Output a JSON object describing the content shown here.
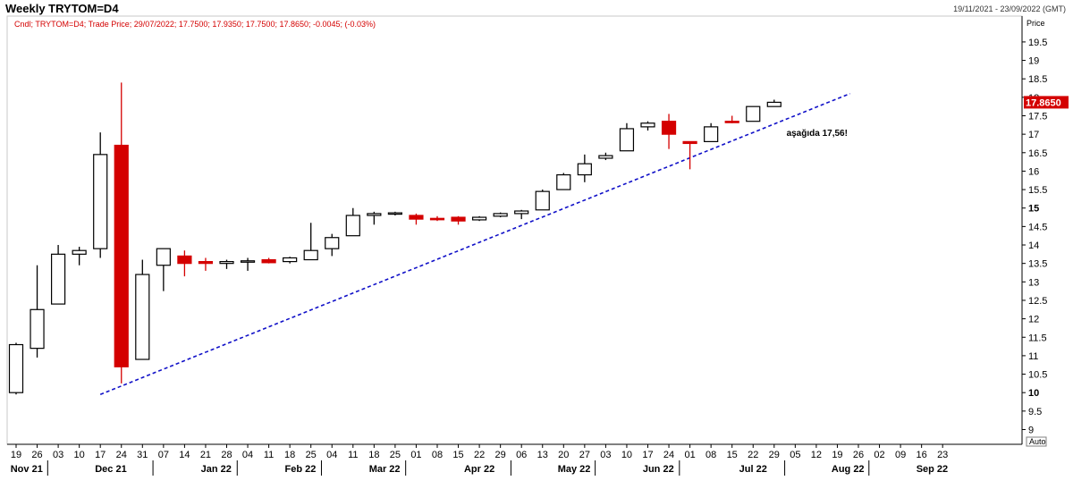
{
  "header": {
    "title": "Weekly TRYTOM=D4",
    "date_range": "19/11/2021 - 23/09/2022 (GMT)",
    "legend": "Cndl; TRYTOM=D4; Trade Price; 29/07/2022; 17.7500; 17.9350; 17.7500; 17.8650; -0.0045; (-0.03%)"
  },
  "colors": {
    "up_fill": "#ffffff",
    "down_fill": "#d40000",
    "outline": "#000000",
    "trendline": "#1010c8",
    "last_price_bg": "#d40000"
  },
  "chart_data": {
    "type": "candlestick",
    "title": "Weekly TRYTOM=D4",
    "ylabel": "Price",
    "ylim": [
      8.6,
      20.2
    ],
    "y_ticks": [
      9,
      9.5,
      10,
      10.5,
      11,
      11.5,
      12,
      12.5,
      13,
      13.5,
      14,
      14.5,
      15,
      15.5,
      16,
      16.5,
      17,
      17.5,
      18,
      18.5,
      19,
      19.5
    ],
    "y_ticks_bold": [
      10,
      15
    ],
    "y_auto_label": "Auto",
    "last_price": 17.865,
    "last_price_label": "17.8650",
    "x_ticks": [
      "19",
      "26",
      "03",
      "10",
      "17",
      "24",
      "31",
      "07",
      "14",
      "21",
      "28",
      "04",
      "11",
      "18",
      "25",
      "04",
      "11",
      "18",
      "25",
      "01",
      "08",
      "15",
      "22",
      "29",
      "06",
      "13",
      "20",
      "27",
      "03",
      "10",
      "17",
      "24",
      "01",
      "08",
      "15",
      "22",
      "29",
      "05",
      "12",
      "19",
      "26",
      "02",
      "09",
      "16",
      "23"
    ],
    "months": [
      {
        "label": "Nov 21",
        "index": 0.5
      },
      {
        "label": "Dec 21",
        "index": 4.5
      },
      {
        "label": "Jan 22",
        "index": 9.5
      },
      {
        "label": "Feb 22",
        "index": 13.5
      },
      {
        "label": "Mar 22",
        "index": 17.5
      },
      {
        "label": "Apr 22",
        "index": 22
      },
      {
        "label": "May 22",
        "index": 26.5
      },
      {
        "label": "Jun 22",
        "index": 30.5
      },
      {
        "label": "Jul 22",
        "index": 35
      },
      {
        "label": "Aug 22",
        "index": 39.5
      },
      {
        "label": "Sep 22",
        "index": 43.5
      }
    ],
    "month_separators": [
      1.5,
      6.5,
      10.5,
      14.5,
      18.5,
      23.5,
      27.5,
      31.5,
      36.5,
      40.5
    ],
    "candles": [
      {
        "date": "19/11/2021",
        "open": 10.0,
        "high": 11.35,
        "low": 9.95,
        "close": 11.3
      },
      {
        "date": "26/11/2021",
        "open": 11.2,
        "high": 13.45,
        "low": 10.95,
        "close": 12.25
      },
      {
        "date": "03/12/2021",
        "open": 12.4,
        "high": 14.0,
        "low": 12.4,
        "close": 13.75
      },
      {
        "date": "10/12/2021",
        "open": 13.75,
        "high": 13.95,
        "low": 13.45,
        "close": 13.85
      },
      {
        "date": "17/12/2021",
        "open": 13.9,
        "high": 17.05,
        "low": 13.65,
        "close": 16.45
      },
      {
        "date": "24/12/2021",
        "open": 16.7,
        "high": 18.4,
        "low": 10.25,
        "close": 10.7
      },
      {
        "date": "31/12/2021",
        "open": 10.9,
        "high": 13.6,
        "low": 10.9,
        "close": 13.2
      },
      {
        "date": "07/01/2022",
        "open": 13.45,
        "high": 13.9,
        "low": 12.75,
        "close": 13.9
      },
      {
        "date": "14/01/2022",
        "open": 13.7,
        "high": 13.85,
        "low": 13.15,
        "close": 13.5
      },
      {
        "date": "21/01/2022",
        "open": 13.55,
        "high": 13.65,
        "low": 13.3,
        "close": 13.5
      },
      {
        "date": "28/01/2022",
        "open": 13.5,
        "high": 13.6,
        "low": 13.35,
        "close": 13.55
      },
      {
        "date": "04/02/2022",
        "open": 13.55,
        "high": 13.65,
        "low": 13.3,
        "close": 13.57
      },
      {
        "date": "11/02/2022",
        "open": 13.6,
        "high": 13.65,
        "low": 13.5,
        "close": 13.52
      },
      {
        "date": "18/02/2022",
        "open": 13.55,
        "high": 13.68,
        "low": 13.5,
        "close": 13.65
      },
      {
        "date": "25/02/2022",
        "open": 13.6,
        "high": 14.6,
        "low": 13.6,
        "close": 13.85
      },
      {
        "date": "04/03/2022",
        "open": 13.9,
        "high": 14.3,
        "low": 13.7,
        "close": 14.2
      },
      {
        "date": "11/03/2022",
        "open": 14.25,
        "high": 15.0,
        "low": 14.25,
        "close": 14.8
      },
      {
        "date": "18/03/2022",
        "open": 14.8,
        "high": 14.9,
        "low": 14.55,
        "close": 14.85
      },
      {
        "date": "25/03/2022",
        "open": 14.85,
        "high": 14.9,
        "low": 14.8,
        "close": 14.87
      },
      {
        "date": "01/04/2022",
        "open": 14.8,
        "high": 14.85,
        "low": 14.55,
        "close": 14.7
      },
      {
        "date": "08/04/2022",
        "open": 14.72,
        "high": 14.78,
        "low": 14.65,
        "close": 14.7
      },
      {
        "date": "15/04/2022",
        "open": 14.75,
        "high": 14.78,
        "low": 14.55,
        "close": 14.65
      },
      {
        "date": "22/04/2022",
        "open": 14.68,
        "high": 14.78,
        "low": 14.65,
        "close": 14.75
      },
      {
        "date": "29/04/2022",
        "open": 14.78,
        "high": 14.88,
        "low": 14.75,
        "close": 14.85
      },
      {
        "date": "06/05/2022",
        "open": 14.85,
        "high": 14.95,
        "low": 14.7,
        "close": 14.92
      },
      {
        "date": "13/05/2022",
        "open": 14.95,
        "high": 15.5,
        "low": 14.95,
        "close": 15.45
      },
      {
        "date": "20/05/2022",
        "open": 15.5,
        "high": 15.95,
        "low": 15.5,
        "close": 15.9
      },
      {
        "date": "27/05/2022",
        "open": 15.9,
        "high": 16.45,
        "low": 15.7,
        "close": 16.2
      },
      {
        "date": "03/06/2022",
        "open": 16.35,
        "high": 16.5,
        "low": 16.3,
        "close": 16.42
      },
      {
        "date": "10/06/2022",
        "open": 16.55,
        "high": 17.3,
        "low": 16.55,
        "close": 17.15
      },
      {
        "date": "17/06/2022",
        "open": 17.2,
        "high": 17.35,
        "low": 17.1,
        "close": 17.3
      },
      {
        "date": "24/06/2022",
        "open": 17.35,
        "high": 17.55,
        "low": 16.6,
        "close": 17.0
      },
      {
        "date": "01/07/2022",
        "open": 16.8,
        "high": 16.8,
        "low": 16.05,
        "close": 16.75
      },
      {
        "date": "08/07/2022",
        "open": 16.8,
        "high": 17.3,
        "low": 16.8,
        "close": 17.2
      },
      {
        "date": "15/07/2022",
        "open": 17.35,
        "high": 17.5,
        "low": 17.3,
        "close": 17.32
      },
      {
        "date": "22/07/2022",
        "open": 17.35,
        "high": 17.75,
        "low": 17.35,
        "close": 17.75
      },
      {
        "date": "29/07/2022",
        "open": 17.75,
        "high": 17.935,
        "low": 17.75,
        "close": 17.865
      }
    ],
    "trendline": {
      "x0_index": 4.0,
      "y0": 9.95,
      "x1_index": 39.6,
      "y1": 18.1
    },
    "annotation": {
      "text": "aşağıda 17,56!",
      "x_index": 36.5,
      "y": 17.05
    }
  }
}
